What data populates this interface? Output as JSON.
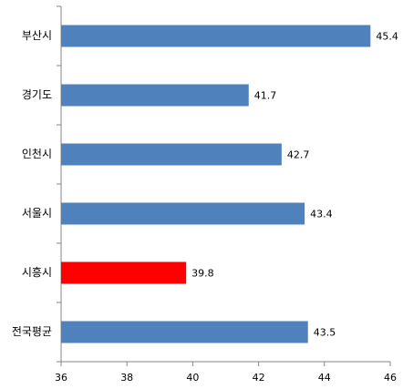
{
  "chart_data": {
    "type": "bar",
    "orientation": "horizontal",
    "categories": [
      "부산시",
      "경기도",
      "인천시",
      "서울시",
      "시흥시",
      "전국평균"
    ],
    "values": [
      45.4,
      41.7,
      42.7,
      43.4,
      39.8,
      43.5
    ],
    "colors": [
      "#4f81bd",
      "#4f81bd",
      "#4f81bd",
      "#4f81bd",
      "#ff0000",
      "#4f81bd"
    ],
    "xlim": [
      36,
      46
    ],
    "xticks": [
      36,
      38,
      40,
      42,
      44,
      46
    ],
    "grid": false
  }
}
